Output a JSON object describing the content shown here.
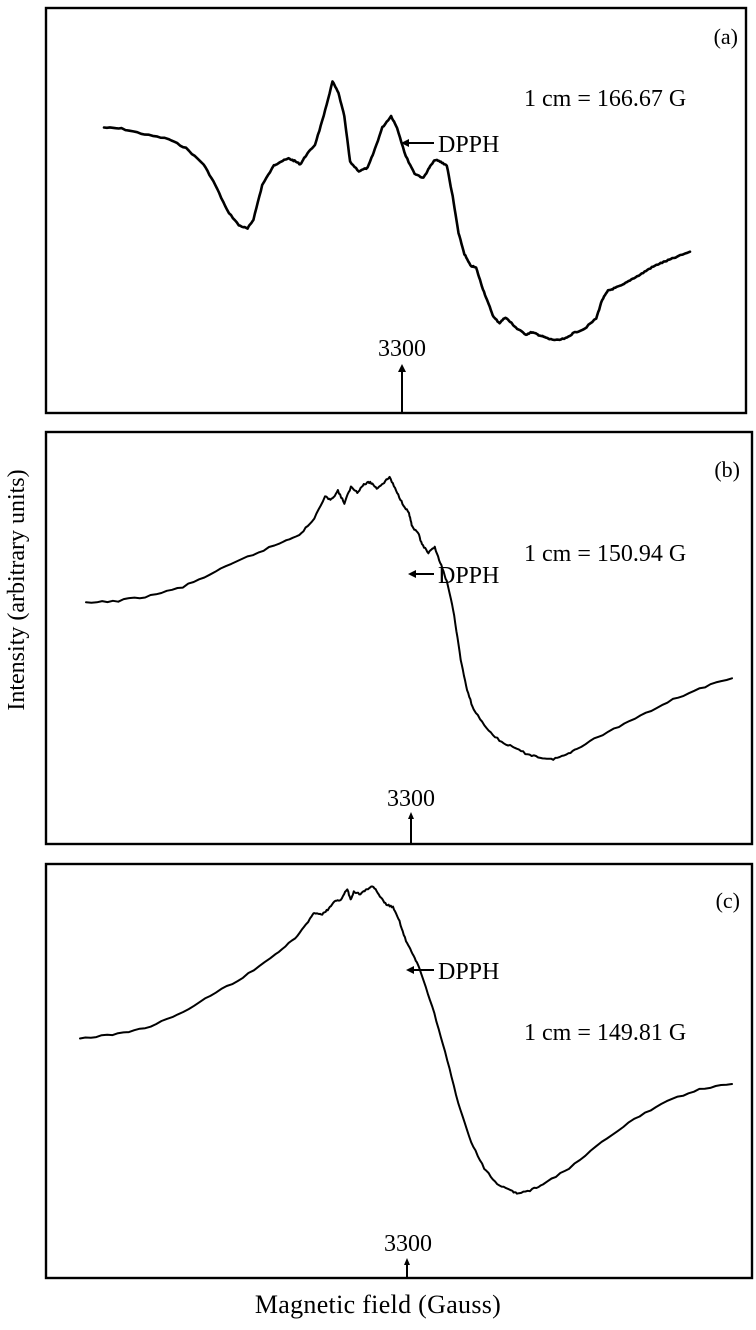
{
  "figure": {
    "ylabel": "Intensity (arbitrary units)",
    "xlabel": "Magnetic field (Gauss)"
  },
  "chart_data": [
    {
      "type": "line",
      "panel_label": "(a)",
      "scale_label": "1 cm = 166.67 G",
      "marker_label": "DPPH",
      "tick_label": "3300",
      "series": [
        {
          "points": [
            [
              0.0,
              0.3
            ],
            [
              0.03,
              0.29
            ],
            [
              0.07,
              0.24
            ],
            [
              0.11,
              0.2
            ],
            [
              0.14,
              0.12
            ],
            [
              0.17,
              -0.02
            ],
            [
              0.19,
              -0.2
            ],
            [
              0.21,
              -0.42
            ],
            [
              0.23,
              -0.55
            ],
            [
              0.245,
              -0.58
            ],
            [
              0.255,
              -0.5
            ],
            [
              0.27,
              -0.2
            ],
            [
              0.29,
              -0.03
            ],
            [
              0.3,
              0.0
            ],
            [
              0.315,
              0.03
            ],
            [
              0.325,
              0.01
            ],
            [
              0.335,
              -0.02
            ],
            [
              0.345,
              0.06
            ],
            [
              0.36,
              0.15
            ],
            [
              0.375,
              0.4
            ],
            [
              0.39,
              0.7
            ],
            [
              0.4,
              0.6
            ],
            [
              0.41,
              0.4
            ],
            [
              0.42,
              0.0
            ],
            [
              0.435,
              -0.08
            ],
            [
              0.45,
              -0.05
            ],
            [
              0.46,
              0.08
            ],
            [
              0.475,
              0.3
            ],
            [
              0.49,
              0.4
            ],
            [
              0.5,
              0.3
            ],
            [
              0.515,
              0.05
            ],
            [
              0.53,
              -0.1
            ],
            [
              0.545,
              -0.14
            ],
            [
              0.555,
              -0.05
            ],
            [
              0.565,
              0.02
            ],
            [
              0.575,
              0.0
            ],
            [
              0.585,
              -0.03
            ],
            [
              0.595,
              -0.3
            ],
            [
              0.605,
              -0.62
            ],
            [
              0.615,
              -0.8
            ],
            [
              0.625,
              -0.9
            ],
            [
              0.635,
              -0.92
            ],
            [
              0.645,
              -1.08
            ],
            [
              0.655,
              -1.22
            ],
            [
              0.665,
              -1.35
            ],
            [
              0.675,
              -1.4
            ],
            [
              0.685,
              -1.35
            ],
            [
              0.695,
              -1.4
            ],
            [
              0.705,
              -1.45
            ],
            [
              0.72,
              -1.5
            ],
            [
              0.73,
              -1.48
            ],
            [
              0.74,
              -1.5
            ],
            [
              0.75,
              -1.52
            ],
            [
              0.76,
              -1.54
            ],
            [
              0.775,
              -1.55
            ],
            [
              0.79,
              -1.53
            ],
            [
              0.8,
              -1.49
            ],
            [
              0.82,
              -1.45
            ],
            [
              0.84,
              -1.36
            ],
            [
              0.85,
              -1.2
            ],
            [
              0.86,
              -1.12
            ],
            [
              0.87,
              -1.1
            ],
            [
              0.885,
              -1.07
            ],
            [
              0.9,
              -1.02
            ],
            [
              0.915,
              -0.98
            ],
            [
              0.93,
              -0.93
            ],
            [
              0.945,
              -0.89
            ],
            [
              0.96,
              -0.86
            ],
            [
              0.975,
              -0.83
            ],
            [
              1.0,
              -0.78
            ]
          ]
        }
      ]
    },
    {
      "type": "line",
      "panel_label": "(b)",
      "scale_label": "1 cm = 150.94 G",
      "marker_label": "DPPH",
      "tick_label": "3300",
      "series": [
        {
          "points": [
            [
              0.0,
              0.15
            ],
            [
              0.05,
              0.17
            ],
            [
              0.1,
              0.21
            ],
            [
              0.15,
              0.28
            ],
            [
              0.2,
              0.4
            ],
            [
              0.25,
              0.52
            ],
            [
              0.3,
              0.63
            ],
            [
              0.33,
              0.7
            ],
            [
              0.35,
              0.8
            ],
            [
              0.37,
              1.0
            ],
            [
              0.38,
              0.98
            ],
            [
              0.39,
              1.05
            ],
            [
              0.4,
              0.95
            ],
            [
              0.41,
              1.08
            ],
            [
              0.42,
              1.04
            ],
            [
              0.43,
              1.1
            ],
            [
              0.44,
              1.12
            ],
            [
              0.45,
              1.07
            ],
            [
              0.46,
              1.11
            ],
            [
              0.47,
              1.16
            ],
            [
              0.48,
              1.05
            ],
            [
              0.49,
              0.95
            ],
            [
              0.5,
              0.87
            ],
            [
              0.505,
              0.76
            ],
            [
              0.515,
              0.7
            ],
            [
              0.52,
              0.62
            ],
            [
              0.53,
              0.55
            ],
            [
              0.54,
              0.6
            ],
            [
              0.55,
              0.45
            ],
            [
              0.56,
              0.3
            ],
            [
              0.57,
              0.05
            ],
            [
              0.58,
              -0.3
            ],
            [
              0.59,
              -0.55
            ],
            [
              0.6,
              -0.7
            ],
            [
              0.62,
              -0.85
            ],
            [
              0.64,
              -0.95
            ],
            [
              0.66,
              -1.0
            ],
            [
              0.68,
              -1.05
            ],
            [
              0.7,
              -1.08
            ],
            [
              0.72,
              -1.1
            ],
            [
              0.74,
              -1.07
            ],
            [
              0.76,
              -1.01
            ],
            [
              0.8,
              -0.9
            ],
            [
              0.85,
              -0.77
            ],
            [
              0.9,
              -0.64
            ],
            [
              0.95,
              -0.53
            ],
            [
              1.0,
              -0.45
            ]
          ]
        }
      ]
    },
    {
      "type": "line",
      "panel_label": "(c)",
      "scale_label": "1 cm = 149.81 G",
      "marker_label": "DPPH",
      "tick_label": "3300",
      "series": [
        {
          "points": [
            [
              0.0,
              0.15
            ],
            [
              0.05,
              0.18
            ],
            [
              0.1,
              0.23
            ],
            [
              0.15,
              0.33
            ],
            [
              0.2,
              0.48
            ],
            [
              0.25,
              0.62
            ],
            [
              0.3,
              0.8
            ],
            [
              0.33,
              0.92
            ],
            [
              0.35,
              1.05
            ],
            [
              0.36,
              1.12
            ],
            [
              0.37,
              1.1
            ],
            [
              0.38,
              1.14
            ],
            [
              0.39,
              1.2
            ],
            [
              0.4,
              1.22
            ],
            [
              0.41,
              1.3
            ],
            [
              0.415,
              1.22
            ],
            [
              0.42,
              1.28
            ],
            [
              0.43,
              1.26
            ],
            [
              0.44,
              1.3
            ],
            [
              0.45,
              1.32
            ],
            [
              0.46,
              1.24
            ],
            [
              0.47,
              1.18
            ],
            [
              0.48,
              1.16
            ],
            [
              0.49,
              1.05
            ],
            [
              0.5,
              0.9
            ],
            [
              0.51,
              0.8
            ],
            [
              0.52,
              0.7
            ],
            [
              0.54,
              0.4
            ],
            [
              0.56,
              0.05
            ],
            [
              0.58,
              -0.35
            ],
            [
              0.6,
              -0.65
            ],
            [
              0.62,
              -0.85
            ],
            [
              0.64,
              -0.97
            ],
            [
              0.66,
              -1.02
            ],
            [
              0.67,
              -1.04
            ],
            [
              0.69,
              -1.02
            ],
            [
              0.71,
              -0.97
            ],
            [
              0.75,
              -0.85
            ],
            [
              0.8,
              -0.65
            ],
            [
              0.85,
              -0.47
            ],
            [
              0.9,
              -0.33
            ],
            [
              0.95,
              -0.24
            ],
            [
              1.0,
              -0.2
            ]
          ]
        }
      ]
    }
  ]
}
